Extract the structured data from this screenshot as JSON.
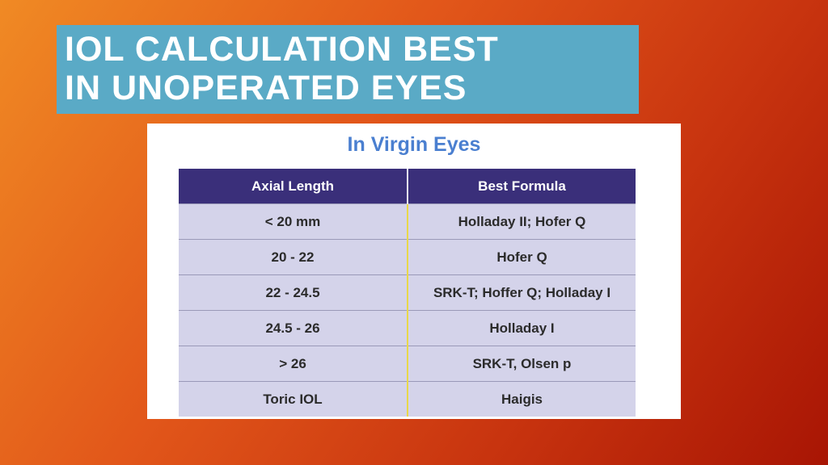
{
  "title": {
    "line1": "IOL CALCULATION BEST",
    "line2": "IN UNOPERATED EYES"
  },
  "panel": {
    "heading": "In Virgin Eyes"
  },
  "table": {
    "headers": [
      "Axial Length",
      "Best Formula"
    ],
    "rows": [
      [
        "< 20 mm",
        "Holladay II; Hofer Q"
      ],
      [
        "20 - 22",
        "Hofer Q"
      ],
      [
        "22 - 24.5",
        "SRK-T; Hoffer Q; Holladay I"
      ],
      [
        "24.5 - 26",
        "Holladay I"
      ],
      [
        "> 26",
        "SRK-T, Olsen p"
      ],
      [
        "Toric IOL",
        "Haigis"
      ]
    ]
  },
  "colors": {
    "title_box": "#5aaac6",
    "heading_text": "#4a7fd0",
    "table_header": "#3a2f7a",
    "table_cell": "#d4d3ea",
    "column_divider": "#e8d84a"
  }
}
